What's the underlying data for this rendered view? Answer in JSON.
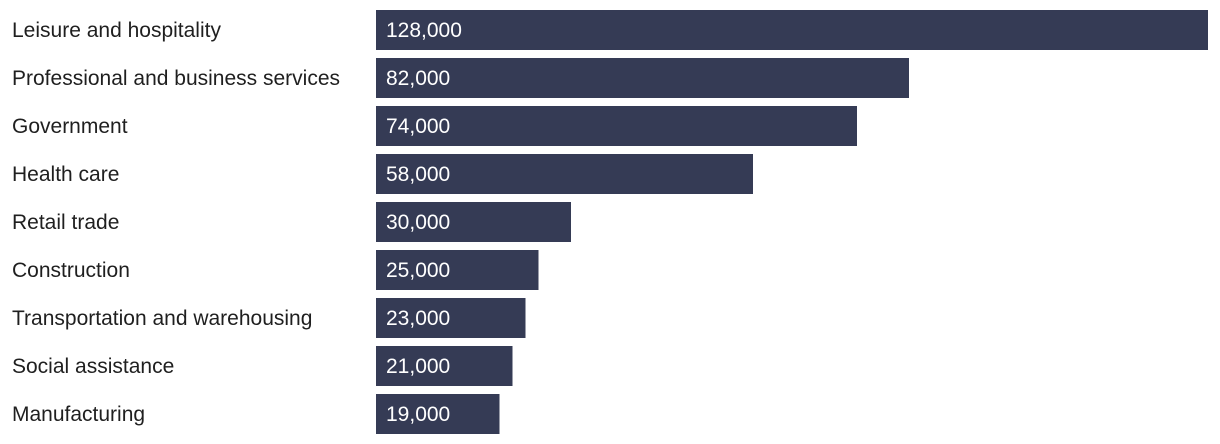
{
  "chart_data": {
    "type": "bar",
    "orientation": "horizontal",
    "categories": [
      "Leisure and hospitality",
      "Professional and business services",
      "Government",
      "Health care",
      "Retail trade",
      "Construction",
      "Transportation and warehousing",
      "Social assistance",
      "Manufacturing"
    ],
    "values": [
      128000,
      82000,
      74000,
      58000,
      30000,
      25000,
      23000,
      21000,
      19000
    ],
    "value_labels": [
      "128,000",
      "82,000",
      "74,000",
      "58,000",
      "30,000",
      "25,000",
      "23,000",
      "21,000",
      "19,000"
    ],
    "title": "",
    "xlabel": "",
    "ylabel": "",
    "xlim": [
      0,
      128000
    ],
    "grid": false,
    "legend": "none",
    "colors": {
      "bar": "#353b55",
      "value_text": "#ffffff",
      "category_text": "#1f1f1f",
      "background": "#ffffff"
    }
  }
}
